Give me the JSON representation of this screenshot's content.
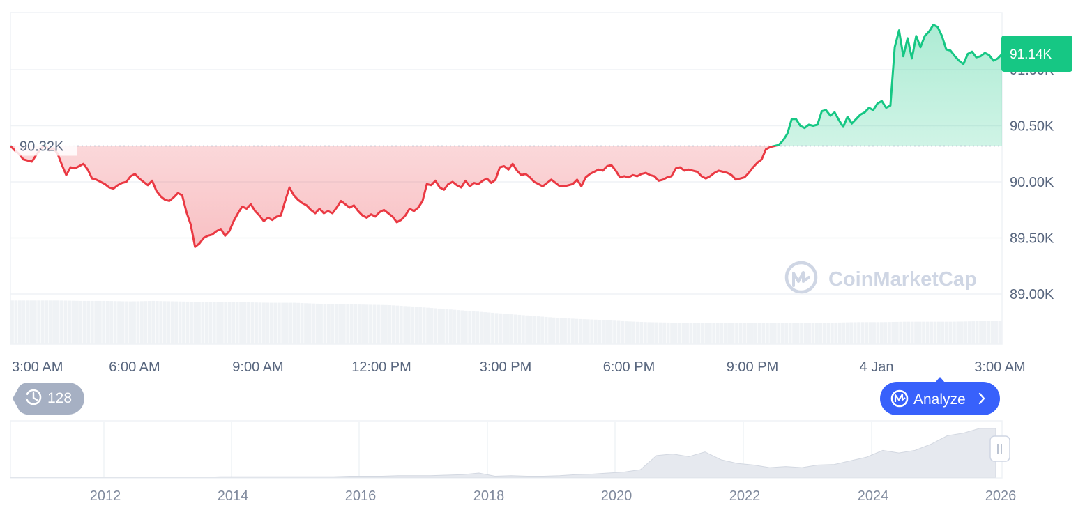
{
  "chart_data": {
    "type": "area",
    "series": [
      {
        "values": [
          90320,
          90280,
          90250,
          90200,
          90190,
          90180,
          90240,
          90290,
          90330,
          90280,
          90300,
          90250,
          90150,
          90060,
          90130,
          90120,
          90140,
          90160,
          90110,
          90030,
          90020,
          90000,
          89980,
          89950,
          89940,
          89970,
          89990,
          90000,
          90050,
          90070,
          90030,
          90000,
          89970,
          90010,
          89920,
          89870,
          89840,
          89830,
          89860,
          89900,
          89880,
          89730,
          89620,
          89420,
          89450,
          89500,
          89520,
          89530,
          89560,
          89580,
          89520,
          89560,
          89650,
          89720,
          89780,
          89760,
          89800,
          89740,
          89700,
          89650,
          89680,
          89660,
          89690,
          89700,
          89830,
          89950,
          89880,
          89840,
          89810,
          89790,
          89750,
          89720,
          89760,
          89720,
          89740,
          89720,
          89770,
          89830,
          89800,
          89770,
          89790,
          89740,
          89700,
          89680,
          89710,
          89690,
          89730,
          89750,
          89720,
          89690,
          89640,
          89660,
          89700,
          89760,
          89740,
          89770,
          89830,
          89980,
          89970,
          90010,
          89950,
          89930,
          89980,
          90000,
          89970,
          89950,
          90010,
          89960,
          89990,
          89980,
          90010,
          90030,
          89990,
          90020,
          90130,
          90140,
          90110,
          90160,
          90100,
          90060,
          90070,
          90040,
          90000,
          89980,
          89960,
          89990,
          90020,
          89990,
          89960,
          89960,
          89970,
          89980,
          90020,
          89960,
          90040,
          90070,
          90090,
          90110,
          90100,
          90140,
          90150,
          90100,
          90040,
          90050,
          90040,
          90060,
          90050,
          90070,
          90080,
          90060,
          90050,
          90010,
          90020,
          90040,
          90050,
          90120,
          90130,
          90100,
          90110,
          90100,
          90090,
          90050,
          90030,
          90050,
          90080,
          90100,
          90090,
          90080,
          90060,
          90020,
          90030,
          90040,
          90080,
          90130,
          90170,
          90200,
          90290,
          90310,
          90320,
          90330,
          90370,
          90430,
          90560,
          90560,
          90500,
          90480,
          90510,
          90500,
          90510,
          90630,
          90640,
          90590,
          90620,
          90550,
          90490,
          90580,
          90520,
          90560,
          90600,
          90620,
          90660,
          90640,
          90700,
          90720,
          90660,
          90680,
          91200,
          91350,
          91120,
          91280,
          91100,
          91300,
          91200,
          91300,
          91340,
          91400,
          91380,
          91300,
          91180,
          91170,
          91120,
          91080,
          91050,
          91140,
          91160,
          91110,
          91120,
          91150,
          91130,
          91080,
          91100,
          91140
        ]
      }
    ],
    "x_ticks": [
      "3:00 AM",
      "6:00 AM",
      "9:00 AM",
      "12:00 PM",
      "3:00 PM",
      "6:00 PM",
      "9:00 PM",
      "4 Jan",
      "3:00 AM"
    ],
    "y_ticks": [
      "89.00K",
      "89.50K",
      "90.00K",
      "90.50K",
      "91.00K"
    ],
    "y_tick_values": [
      89000,
      89500,
      90000,
      90500,
      91000
    ],
    "ylim": [
      88900,
      91500
    ],
    "reference_value": 90320,
    "reference_label": "90.32K",
    "current_value": 91140,
    "current_label": "91.14K",
    "colors": {
      "up": "#16c784",
      "down": "#ea3943",
      "grid": "#eff2f5",
      "axis_text": "#58667e",
      "volume": "#eff2f5",
      "navigator": "#dfe3ea"
    },
    "volume_levels": [
      0.95,
      0.95,
      0.95,
      0.94,
      0.94,
      0.93,
      0.94,
      0.93,
      0.92,
      0.92,
      0.91,
      0.9,
      0.9,
      0.88,
      0.87,
      0.86,
      0.85,
      0.82,
      0.78,
      0.74,
      0.7,
      0.66,
      0.62,
      0.58,
      0.55,
      0.53,
      0.5,
      0.48,
      0.47,
      0.47,
      0.47,
      0.46,
      0.46,
      0.47,
      0.47,
      0.47,
      0.48,
      0.48,
      0.49,
      0.49,
      0.49,
      0.5,
      0.5
    ],
    "navigator": {
      "x_ticks": [
        "2012",
        "2014",
        "2016",
        "2018",
        "2020",
        "2022",
        "2024",
        "2026"
      ],
      "levels": [
        0,
        0,
        0,
        0,
        0,
        0,
        0,
        0,
        0,
        0,
        0,
        0,
        0,
        0.01,
        0.01,
        0.01,
        0.01,
        0.01,
        0.01,
        0.01,
        0.01,
        0.02,
        0.02,
        0.02,
        0.03,
        0.03,
        0.03,
        0.04,
        0.05,
        0.08,
        0.02,
        0.03,
        0.02,
        0.02,
        0.03,
        0.05,
        0.06,
        0.08,
        0.1,
        0.16,
        0.4,
        0.46,
        0.38,
        0.5,
        0.32,
        0.28,
        0.22,
        0.2,
        0.19,
        0.2,
        0.22,
        0.26,
        0.3,
        0.4,
        0.5,
        0.48,
        0.5,
        0.65,
        0.78,
        0.86,
        0.92,
        0.95
      ]
    }
  },
  "ui": {
    "history_count": "128",
    "analyze_label": "Analyze",
    "watermark": "CoinMarketCap"
  }
}
